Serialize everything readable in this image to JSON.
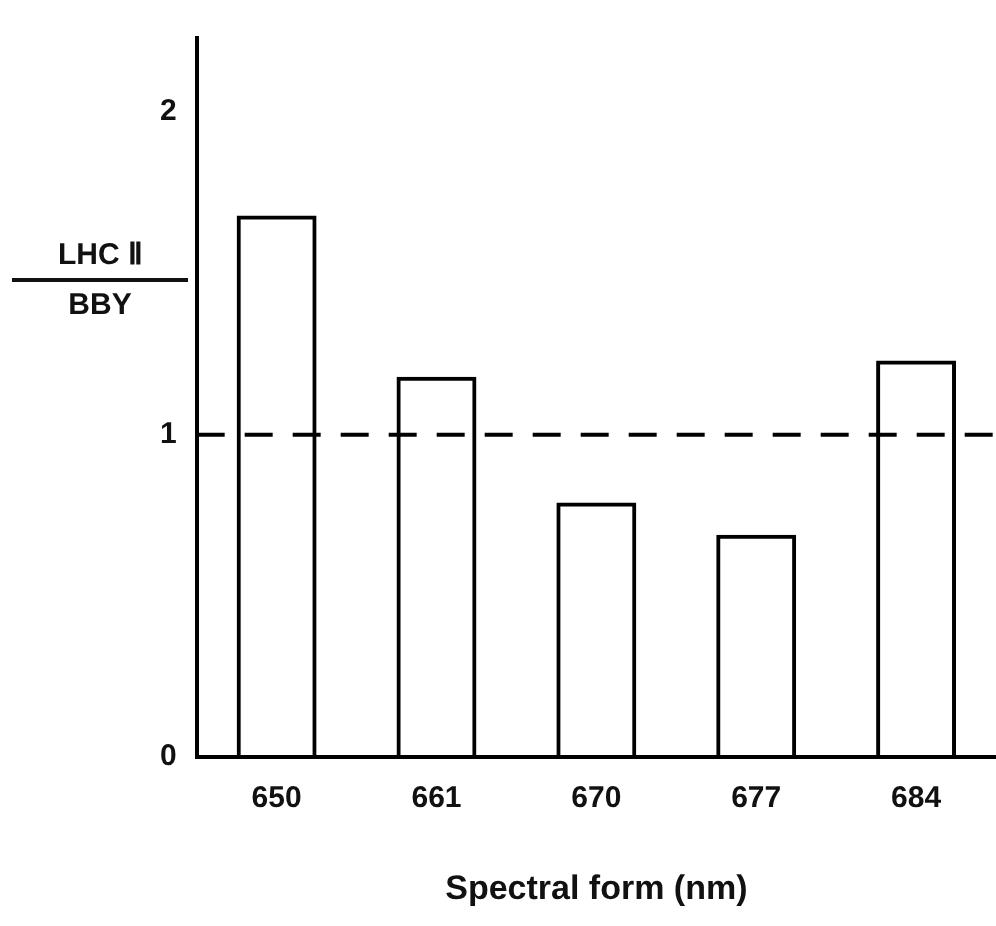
{
  "chart_data": {
    "type": "bar",
    "xlabel": "Spectral form (nm)",
    "ylabel": "LHC Ⅱ\nBBY",
    "categories": [
      "650",
      "661",
      "670",
      "677",
      "684"
    ],
    "values": [
      1.68,
      1.18,
      0.79,
      0.69,
      1.23
    ],
    "color": "#000000",
    "ylim": [
      0,
      2.23
    ],
    "yticks": [
      0,
      1,
      2
    ],
    "grid": false,
    "legend": false,
    "ref_lines": [
      {
        "axis": "y",
        "value": 1,
        "line_style": "dashed",
        "color": "#000000"
      }
    ]
  }
}
